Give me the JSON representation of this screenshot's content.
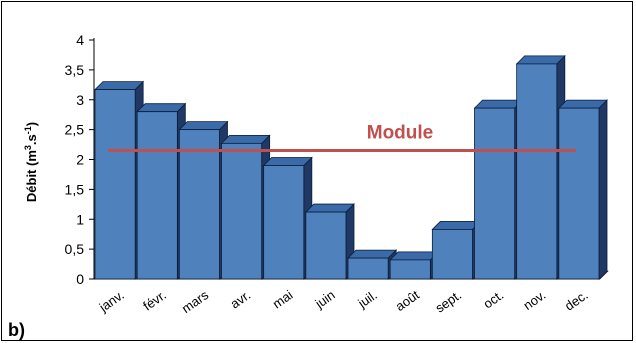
{
  "panel_label": "b)",
  "colors": {
    "bar_front": "#4F81BD",
    "bar_side": "#1F3864",
    "bar_top": "#3A6AA8",
    "bar_edge": "#0B1D3A",
    "module_line": "#C0504D",
    "axis": "#000000"
  },
  "chart_data": {
    "type": "bar",
    "categories": [
      "janv.",
      "févr.",
      "mars",
      "avr.",
      "mai",
      "juin",
      "juil.",
      "août",
      "sept.",
      "oct.",
      "nov.",
      "dec."
    ],
    "values": [
      3.17,
      2.8,
      2.5,
      2.27,
      1.9,
      1.12,
      0.35,
      0.32,
      0.83,
      2.86,
      3.6,
      2.86
    ],
    "ylabel_main": "Débit (m",
    "ylabel_sup1": "3",
    "ylabel_mid": ".s",
    "ylabel_sup2": "-1",
    "ylabel_end": ")",
    "ylim": [
      0,
      4
    ],
    "yticks": [
      0,
      0.5,
      1,
      1.5,
      2,
      2.5,
      3,
      3.5,
      4
    ],
    "ytick_labels": [
      "0",
      "0,5",
      "1",
      "1,5",
      "2",
      "2,5",
      "3",
      "3,5",
      "4"
    ],
    "reference_line": {
      "label": "Module",
      "value": 2.15
    },
    "grid": false,
    "style": "3d"
  }
}
